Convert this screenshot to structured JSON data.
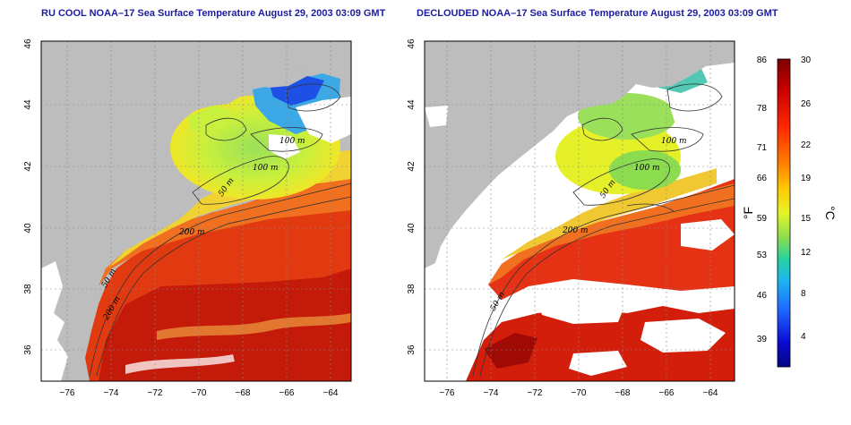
{
  "left_panel": {
    "title": "RU COOL NOAA–17 Sea Surface Temperature August 29, 2003 03:09 GMT",
    "contour_labels": [
      "100 m",
      "100 m",
      "50 m",
      "200 m",
      "50 m",
      "200 m"
    ]
  },
  "right_panel": {
    "title": "DECLOUDED NOAA–17 Sea Surface Temperature August 29, 2003 03:09 GMT",
    "contour_labels": [
      "100 m",
      "100 m",
      "50 m",
      "200 m",
      "50 m"
    ]
  },
  "axes": {
    "x_ticks": [
      "−76",
      "−74",
      "−72",
      "−70",
      "−68",
      "−66",
      "−64"
    ],
    "y_ticks": [
      "36",
      "38",
      "40",
      "42",
      "44",
      "46"
    ]
  },
  "colorbar": {
    "fahrenheit_ticks": [
      "86",
      "78",
      "71",
      "66",
      "59",
      "53",
      "46",
      "39"
    ],
    "celsius_ticks": [
      "30",
      "26",
      "22",
      "19",
      "15",
      "12",
      "8",
      "4"
    ],
    "fahrenheit_unit": "°F",
    "celsius_unit": "°C"
  },
  "colors": {
    "land": "#bdbdbd",
    "title_color": "#1c1ca0",
    "ramp": [
      "#7d0000",
      "#c80000",
      "#ff2800",
      "#ff7800",
      "#ffc800",
      "#e6f528",
      "#8cdc50",
      "#28d2a0",
      "#1eb4f0",
      "#1e64ff",
      "#0a0ad2",
      "#050582"
    ]
  }
}
